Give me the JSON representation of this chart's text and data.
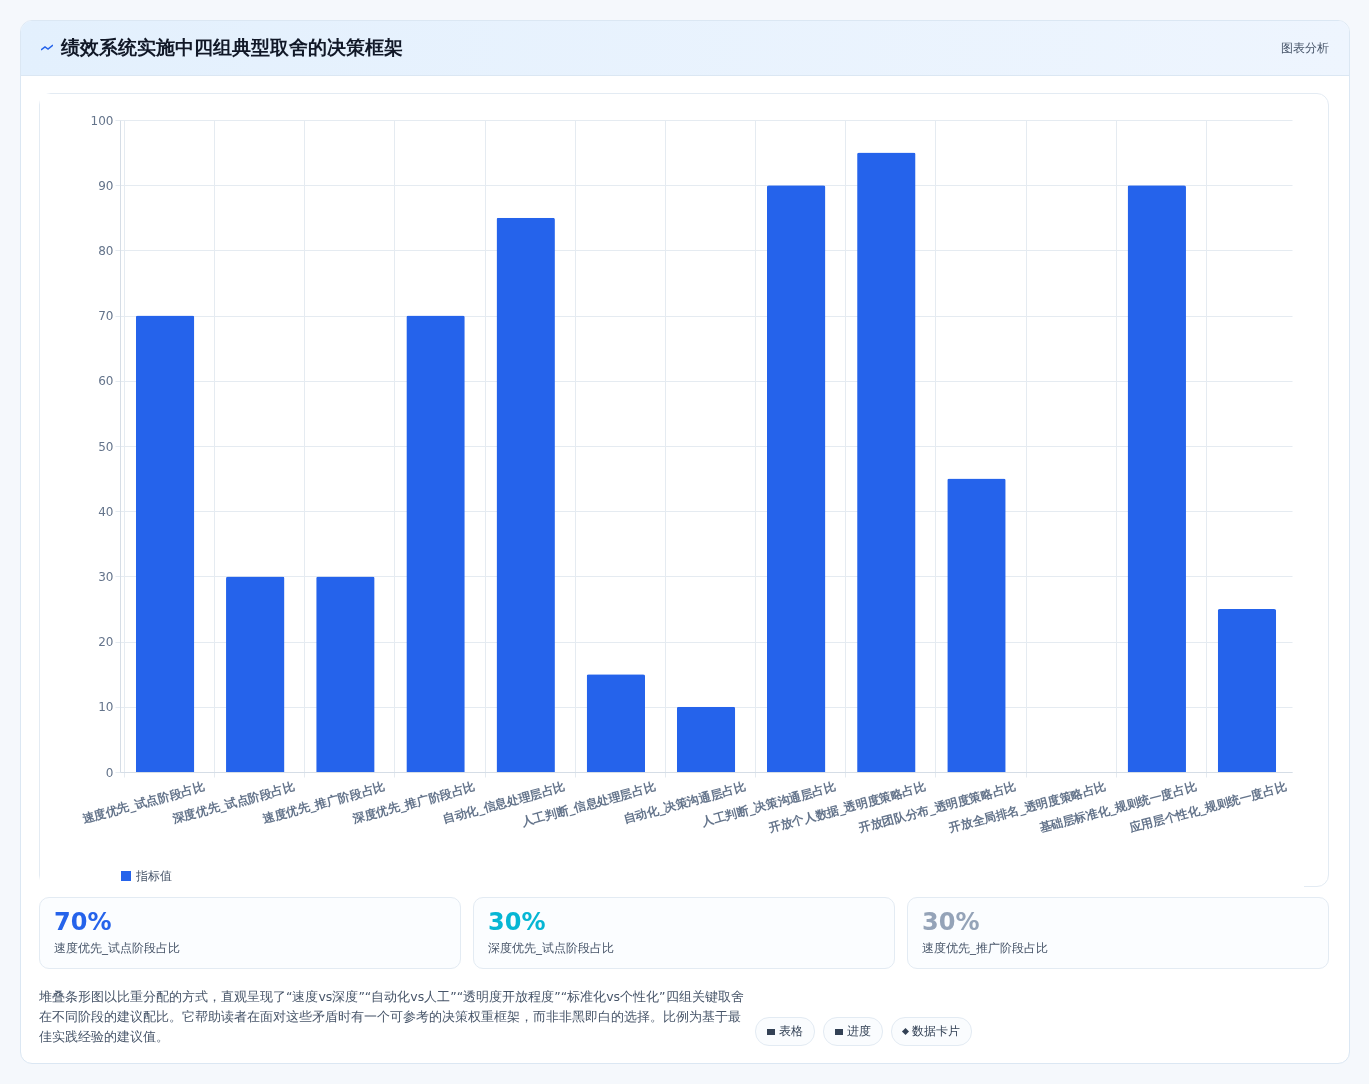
{
  "chart_data": {
    "type": "bar",
    "title": "绩效系统实施中四组典型取舍的决策框架",
    "categories": [
      "速度优先_试点阶段占比",
      "深度优先_试点阶段占比",
      "速度优先_推广阶段占比",
      "深度优先_推广阶段占比",
      "自动化_信息处理层占比",
      "人工判断_信息处理层占比",
      "自动化_决策沟通层占比",
      "人工判断_决策沟通层占比",
      "开放个人数据_透明度策略占比",
      "开放团队分布_透明度策略占比",
      "开放全局排名_透明度策略占比",
      "基础层标准化_规则统一度占比",
      "应用层个性化_规则统一度占比"
    ],
    "series": [
      {
        "name": "指标值",
        "color": "#2563eb",
        "values": [
          70,
          30,
          30,
          70,
          85,
          15,
          10,
          90,
          95,
          45,
          0,
          90,
          25
        ]
      }
    ],
    "ylim": [
      0,
      100
    ],
    "yticks": [
      0,
      10,
      20,
      30,
      40,
      50,
      60,
      70,
      80,
      90,
      100
    ],
    "grid": true,
    "legend": "bottom",
    "annotations": [
      "图表分析",
      "70%",
      "速度优先_试点阶段占比",
      "30%",
      "深度优先_试点阶段占比",
      "30%",
      "速度优先_推广阶段占比",
      "堆叠条形图以比重分配的方式，直观呈现了“速度vs深度”“自动化vs人工”“透明度开放程度”“标准化vs个性化”四组关键取舍在不同阶段的建议配比。它帮助读者在面对这些矛盾时有一个可参考的决策权重框架，而非非黑即白的选择。比例为基于最佳实践经验的建议值。",
      "表格",
      "进度",
      "数据卡片"
    ]
  }
}
